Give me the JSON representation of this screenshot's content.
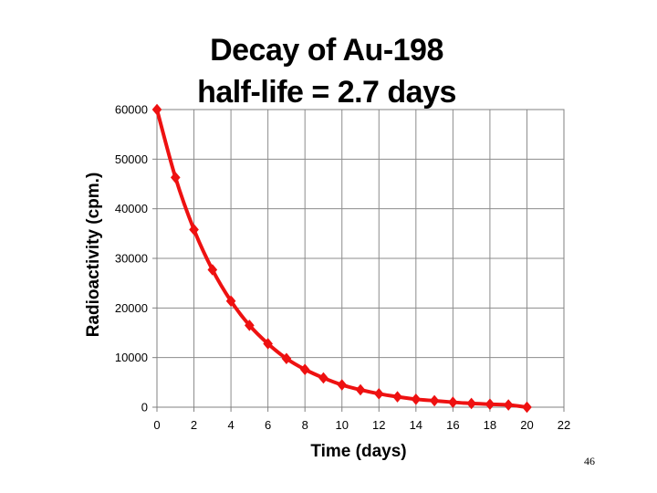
{
  "page_number": "46",
  "chart_data": {
    "type": "line",
    "title": "Decay of Au-198",
    "subtitle": "half-life = 2.7 days",
    "xlabel": "Time (days)",
    "ylabel": "Radioactivity (cpm.)",
    "xlim": [
      0,
      22
    ],
    "ylim": [
      0,
      60000
    ],
    "xticks": [
      0,
      2,
      4,
      6,
      8,
      10,
      12,
      14,
      16,
      18,
      20,
      22
    ],
    "yticks": [
      0,
      10000,
      20000,
      30000,
      40000,
      50000,
      60000
    ],
    "grid": true,
    "legend": "none",
    "series": [
      {
        "color": "#ee1111",
        "marker": "diamond",
        "x": [
          0,
          1,
          2,
          3,
          4,
          5,
          6,
          7,
          8,
          9,
          10,
          11,
          12,
          13,
          14,
          15,
          16,
          17,
          18,
          19,
          20
        ],
        "y": [
          60000,
          46300,
          35800,
          27700,
          21400,
          16500,
          12800,
          9800,
          7600,
          5900,
          4500,
          3500,
          2700,
          2100,
          1600,
          1300,
          1000,
          750,
          600,
          450,
          0
        ]
      }
    ]
  }
}
